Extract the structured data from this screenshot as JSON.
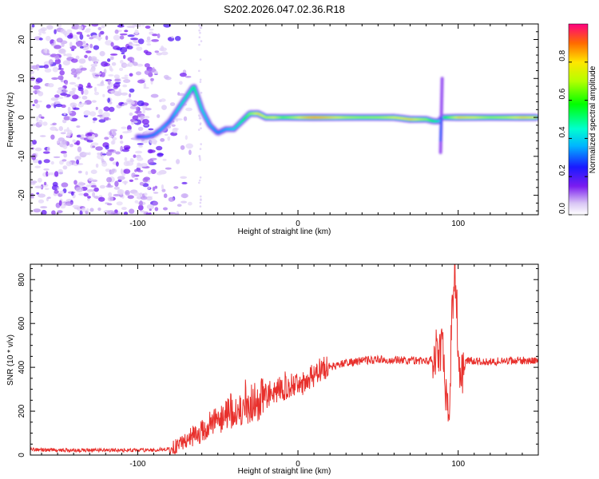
{
  "chart_data": [
    {
      "type": "heatmap",
      "title": "S202.2026.047.02.36.R18",
      "xlabel": "Height of straight line (km)",
      "ylabel": "Frequency (Hz)",
      "xlim": [
        -167,
        150
      ],
      "ylim": [
        -25,
        24
      ],
      "xticks": [
        -100,
        0,
        100
      ],
      "xtick_labels": [
        "-100",
        "0",
        "100"
      ],
      "yticks": [
        -20,
        -10,
        0,
        10,
        20
      ],
      "ytick_labels": [
        "-20",
        "-10",
        "0",
        "10",
        "20"
      ],
      "colorbar": {
        "label": "Normalized spectral amplitude",
        "range": [
          0,
          1
        ],
        "ticks": [
          0.0,
          0.2,
          0.4,
          0.6,
          0.8
        ],
        "tick_labels": [
          "0.0",
          "0.2",
          "0.4",
          "0.6",
          "0.8"
        ]
      },
      "ridge": {
        "x": [
          -100,
          -95,
          -90,
          -85,
          -80,
          -75,
          -70,
          -65,
          -60,
          -55,
          -50,
          -45,
          -40,
          -35,
          -30,
          -25,
          -20,
          -15,
          -10,
          -5,
          0,
          10,
          20,
          30,
          40,
          50,
          60,
          70,
          80,
          85,
          88,
          90,
          95,
          100,
          110,
          120,
          130,
          140,
          148
        ],
        "y": [
          -5,
          -5,
          -4.5,
          -3,
          -1,
          2,
          5,
          8,
          2,
          -2,
          -4,
          -3,
          -3,
          -1,
          1,
          1,
          0,
          0,
          0,
          0,
          0,
          0,
          0,
          0,
          0,
          0,
          0,
          -0.5,
          -0.5,
          -1,
          -1,
          0,
          0,
          0,
          0,
          0,
          0,
          0,
          0
        ],
        "amplitude": [
          0.3,
          0.35,
          0.35,
          0.4,
          0.35,
          0.45,
          0.5,
          0.55,
          0.45,
          0.4,
          0.35,
          0.4,
          0.45,
          0.55,
          0.7,
          0.85,
          0.75,
          0.8,
          0.65,
          0.7,
          0.8,
          0.95,
          0.85,
          0.75,
          0.7,
          0.72,
          0.8,
          0.85,
          0.7,
          0.55,
          0.45,
          0.55,
          0.7,
          0.85,
          0.8,
          0.7,
          0.75,
          0.85,
          0.8
        ]
      }
    },
    {
      "type": "line",
      "xlabel": "Height of straight line (km)",
      "ylabel": "SNR (10 * v/v)",
      "xlim": [
        -167,
        150
      ],
      "ylim": [
        0,
        870
      ],
      "xticks": [
        -100,
        0,
        100
      ],
      "xtick_labels": [
        "-100",
        "0",
        "100"
      ],
      "yticks": [
        0,
        200,
        400,
        600,
        800
      ],
      "ytick_labels": [
        "0",
        "200",
        "400",
        "600",
        "800"
      ],
      "series": [
        {
          "name": "SNR",
          "color": "#e8302c",
          "x": [
            -167,
            -140,
            -120,
            -100,
            -90,
            -80,
            -75,
            -70,
            -65,
            -60,
            -55,
            -50,
            -45,
            -40,
            -35,
            -30,
            -25,
            -20,
            -15,
            -10,
            -5,
            0,
            5,
            10,
            15,
            20,
            25,
            30,
            40,
            50,
            60,
            70,
            80,
            85,
            88,
            90,
            92,
            94,
            96,
            98,
            100,
            102,
            105,
            110,
            120,
            130,
            140,
            150
          ],
          "values": [
            25,
            22,
            22,
            22,
            22,
            30,
            45,
            70,
            90,
            110,
            140,
            160,
            185,
            200,
            215,
            230,
            250,
            270,
            290,
            300,
            310,
            320,
            340,
            370,
            390,
            400,
            410,
            420,
            430,
            435,
            435,
            432,
            430,
            440,
            470,
            500,
            300,
            150,
            600,
            870,
            500,
            350,
            430,
            430,
            425,
            430,
            432,
            430
          ]
        }
      ]
    }
  ],
  "colors": {
    "line": "#e8302c",
    "frame": "#000000"
  }
}
